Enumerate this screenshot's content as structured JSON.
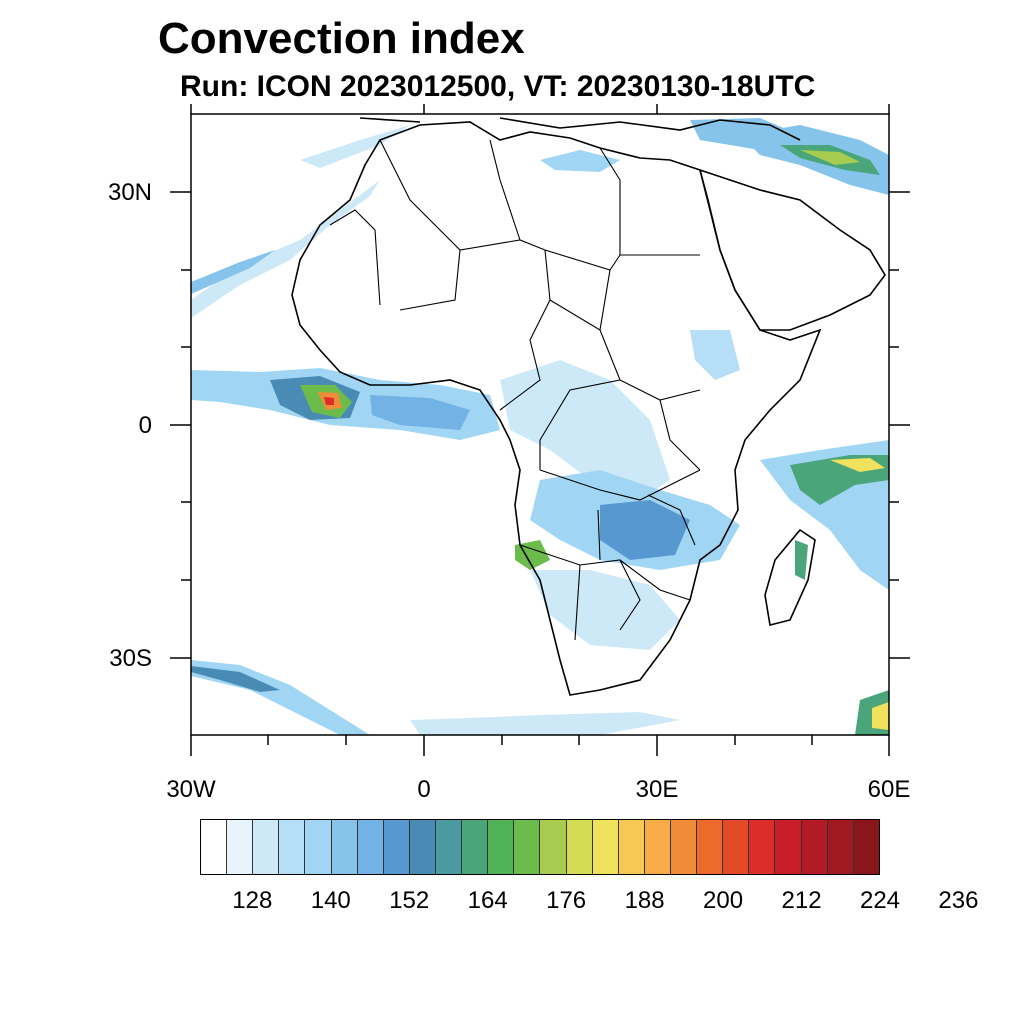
{
  "title": "Convection index",
  "subtitle": "Run: ICON 2023012500,  VT: 20230130-18UTC",
  "axes": {
    "lat_labels": [
      "30N",
      "0",
      "30S"
    ],
    "lon_labels": [
      "30W",
      "0",
      "30E",
      "60E"
    ]
  },
  "colorbar": {
    "labels": [
      "128",
      "140",
      "152",
      "164",
      "176",
      "188",
      "200",
      "212",
      "224",
      "236"
    ],
    "colors": [
      "#ffffff",
      "#e8f4fb",
      "#cde9f8",
      "#b6def6",
      "#a0d6f4",
      "#86c4ec",
      "#72b2e4",
      "#5898d0",
      "#4a8bb6",
      "#4a9aa0",
      "#4aa67a",
      "#50b256",
      "#6cbc4c",
      "#a8cc50",
      "#d4dc56",
      "#f0e25c",
      "#f8c854",
      "#f8ac48",
      "#f08c38",
      "#ec6a2c",
      "#e44a26",
      "#dc2e28",
      "#c81e2a",
      "#b41a26",
      "#a01820",
      "#8a161c"
    ]
  },
  "map_data": {
    "region": "Africa",
    "lon_range": [
      -30,
      60
    ],
    "lat_range": [
      -40,
      40
    ],
    "variable": "Convection index"
  }
}
